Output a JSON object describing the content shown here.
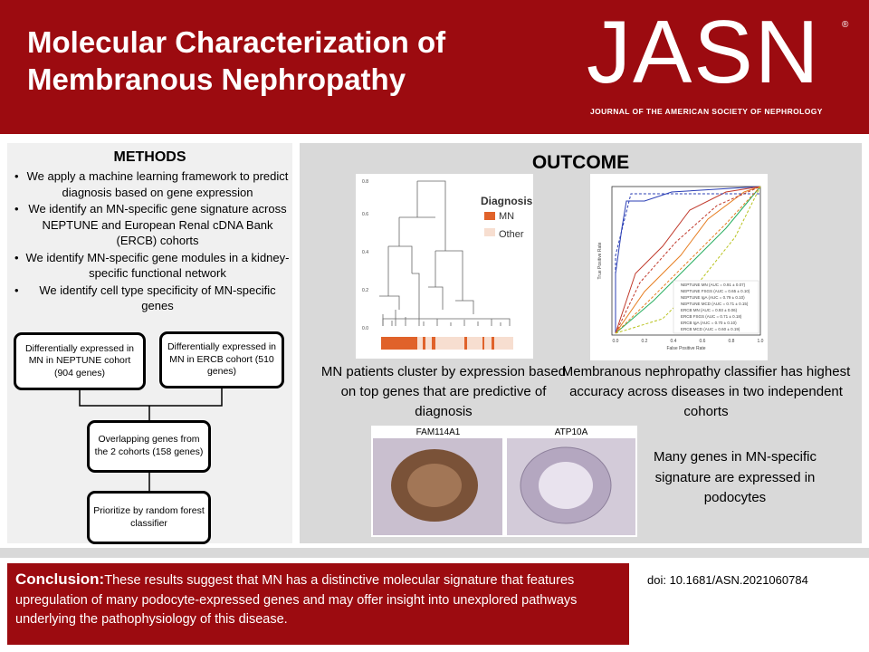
{
  "header": {
    "title_lines": [
      "Molecular Characterization of",
      "Membranous Nephropathy"
    ],
    "logo": "JASN",
    "registered": "®",
    "journal": "JOURNAL OF THE AMERICAN SOCIETY OF NEPHROLOGY"
  },
  "methods": {
    "heading": "METHODS",
    "bullets": [
      "We apply a machine learning framework to predict diagnosis based on gene expression",
      "We identify an MN-specific gene signature across NEPTUNE and European Renal cDNA Bank (ERCB) cohorts",
      "We identify MN-specific gene modules in a kidney-specific functional network",
      "We identify cell type specificity of MN-specific genes"
    ],
    "flow": [
      "Differentially expressed in MN in NEPTUNE cohort (904 genes)",
      "Differentially expressed in MN in ERCB cohort (510 genes)",
      "Overlapping genes from the 2 cohorts (158 genes)",
      "Prioritize by random forest classifier"
    ]
  },
  "outcome": {
    "heading": "OUTCOME",
    "dendrogram": {
      "legend_title": "Diagnosis",
      "legend": [
        "MN",
        "Other"
      ],
      "yticks": [
        "0.0",
        "0.2",
        "0.4",
        "0.6",
        "0.8"
      ]
    },
    "roc": {
      "xlabel": "False Positive Rate",
      "ylabel": "True Positive Rate",
      "ticks": [
        "0.0",
        "0.2",
        "0.4",
        "0.6",
        "0.8",
        "1.0"
      ],
      "legend": [
        "NEPTUNE MN (AUC = 0.91 ± 0.07)",
        "NEPTUNE FSGS (AUC = 0.65 ± 0.10)",
        "NEPTUNE IgA (AUC = 0.79 ± 0.10)",
        "NEPTUNE MCD (AUC = 0.71 ± 0.15)",
        "ERCB MN (AUC = 0.93 ± 0.06)",
        "ERCB FSGS (AUC = 0.71 ± 0.18)",
        "ERCB IgA (AUC = 0.70 ± 0.10)",
        "ERCB MCD (AUC = 0.60 ± 0.19)"
      ]
    },
    "caption_left": "MN patients cluster by expression based on top genes that are predictive of diagnosis",
    "caption_right": "Membranous nephropathy classifier has highest  accuracy across diseases in two independent cohorts",
    "histology": [
      "FAM114A1",
      "ATP10A"
    ],
    "caption_histology": "Many genes in MN-specific signature are expressed in podocytes"
  },
  "conclusion": {
    "label": "Conclusion:",
    "text": "These results suggest that MN has a distinctive molecular signature that features upregulation of many podocyte-expressed genes and may offer insight into unexplored pathways underlying the pathophysiology of this disease."
  },
  "doi": "doi: 10.1681/ASN.2021060784"
}
